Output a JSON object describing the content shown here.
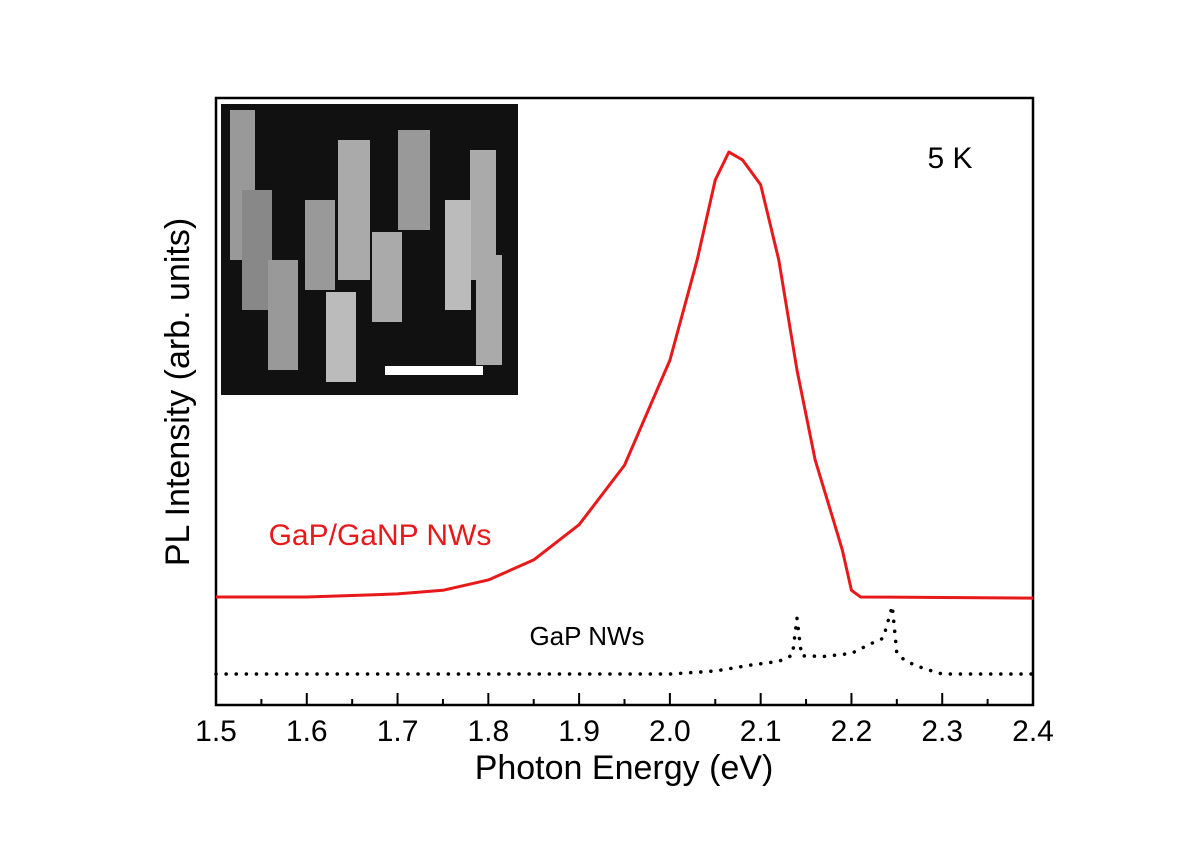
{
  "chart_data": {
    "type": "line",
    "xlabel": "Photon Energy (eV)",
    "ylabel": "PL Intensity (arb. units)",
    "annotation": "5 K",
    "xlim": [
      1.5,
      2.4
    ],
    "ylim": [
      0,
      1
    ],
    "xticks": [
      1.5,
      1.6,
      1.7,
      1.8,
      1.9,
      {
        "value": 2.0,
        "label": "2.0"
      },
      2.1,
      2.2,
      2.3,
      2.4
    ],
    "series": [
      {
        "name": "GaP/GaNP NWs",
        "color": "#e8191b",
        "style": "solid",
        "x": [
          1.5,
          1.6,
          1.7,
          1.75,
          1.8,
          1.85,
          1.9,
          1.95,
          2.0,
          2.03,
          2.05,
          2.065,
          2.08,
          2.1,
          2.12,
          2.14,
          2.16,
          2.18,
          2.19,
          2.2,
          2.21,
          2.4
        ],
        "values": [
          0.178,
          0.178,
          0.183,
          0.189,
          0.206,
          0.239,
          0.297,
          0.395,
          0.568,
          0.733,
          0.865,
          0.911,
          0.898,
          0.857,
          0.733,
          0.552,
          0.404,
          0.305,
          0.255,
          0.189,
          0.178,
          0.176
        ]
      },
      {
        "name": "GaP NWs",
        "color": "#000000",
        "style": "dotted",
        "x": [
          1.5,
          2.0,
          2.05,
          2.09,
          2.12,
          2.135,
          2.14,
          2.145,
          2.17,
          2.2,
          2.22,
          2.235,
          2.245,
          2.25,
          2.26,
          2.28,
          2.3,
          2.4
        ],
        "values": [
          0.051,
          0.051,
          0.056,
          0.066,
          0.072,
          0.082,
          0.143,
          0.081,
          0.08,
          0.085,
          0.1,
          0.11,
          0.163,
          0.085,
          0.072,
          0.06,
          0.051,
          0.051
        ]
      }
    ]
  }
}
